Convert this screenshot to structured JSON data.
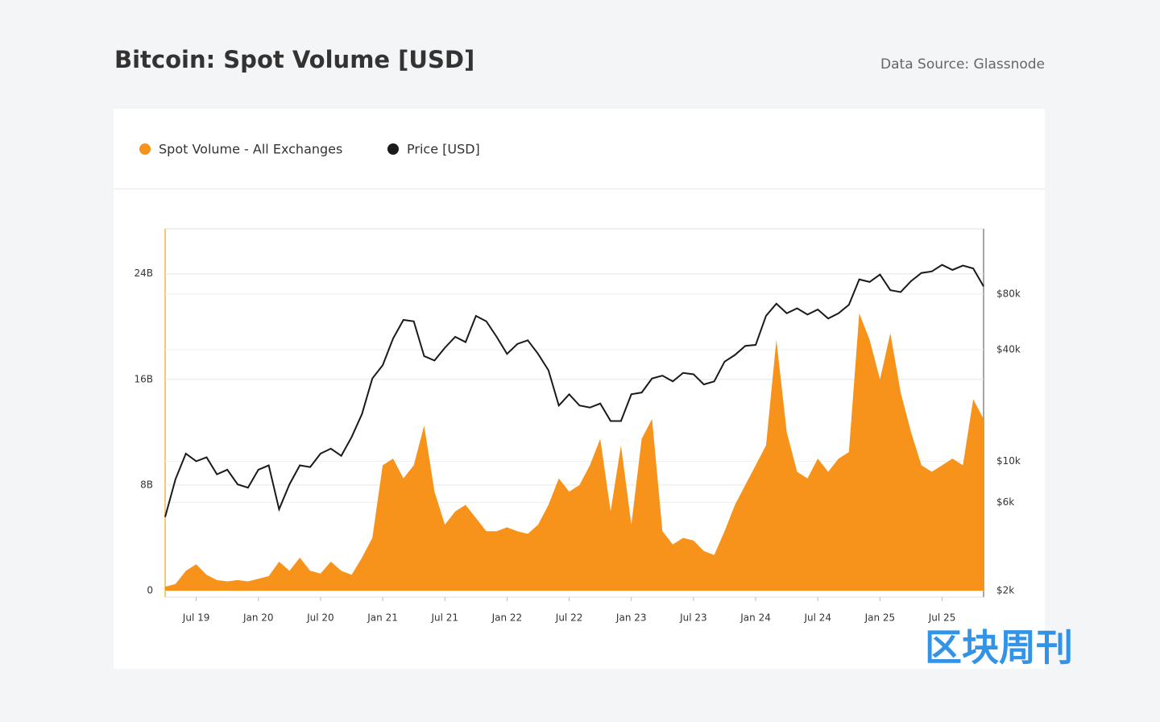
{
  "chart_data": {
    "type": "combo",
    "title": "Bitcoin: Spot Volume [USD]",
    "source": "Data Source: Glassnode",
    "watermark": "区块周刊",
    "x": [
      "2019-04",
      "2019-05",
      "2019-06",
      "2019-07",
      "2019-08",
      "2019-09",
      "2019-10",
      "2019-11",
      "2019-12",
      "2020-01",
      "2020-02",
      "2020-03",
      "2020-04",
      "2020-05",
      "2020-06",
      "2020-07",
      "2020-08",
      "2020-09",
      "2020-10",
      "2020-11",
      "2020-12",
      "2021-01",
      "2021-02",
      "2021-03",
      "2021-04",
      "2021-05",
      "2021-06",
      "2021-07",
      "2021-08",
      "2021-09",
      "2021-10",
      "2021-11",
      "2021-12",
      "2022-01",
      "2022-02",
      "2022-03",
      "2022-04",
      "2022-05",
      "2022-06",
      "2022-07",
      "2022-08",
      "2022-09",
      "2022-10",
      "2022-11",
      "2022-12",
      "2023-01",
      "2023-02",
      "2023-03",
      "2023-04",
      "2023-05",
      "2023-06",
      "2023-07",
      "2023-08",
      "2023-09",
      "2023-10",
      "2023-11",
      "2023-12",
      "2024-01",
      "2024-02",
      "2024-03",
      "2024-04",
      "2024-05",
      "2024-06",
      "2024-07",
      "2024-08",
      "2024-09",
      "2024-10",
      "2024-11",
      "2024-12",
      "2025-01",
      "2025-02",
      "2025-03",
      "2025-04",
      "2025-05",
      "2025-06",
      "2025-07",
      "2025-08",
      "2025-09",
      "2025-10",
      "2025-11"
    ],
    "series": [
      {
        "name": "Spot Volume - All Exchanges",
        "color": "#f7931a",
        "type": "area",
        "values": [
          0.3,
          0.5,
          1.5,
          2.0,
          1.2,
          0.8,
          0.7,
          0.8,
          0.7,
          0.9,
          1.1,
          2.2,
          1.5,
          2.5,
          1.5,
          1.3,
          2.2,
          1.5,
          1.2,
          2.5,
          4.0,
          9.5,
          10.0,
          8.5,
          9.5,
          12.5,
          7.5,
          5.0,
          6.0,
          6.5,
          5.5,
          4.5,
          4.5,
          4.8,
          4.5,
          4.3,
          5.0,
          6.5,
          8.5,
          7.5,
          8.0,
          9.5,
          11.5,
          6.0,
          11.0,
          5.0,
          11.5,
          13.0,
          4.5,
          3.5,
          4.0,
          3.8,
          3.0,
          2.7,
          4.5,
          6.5,
          8.0,
          9.5,
          11.0,
          19.0,
          12.0,
          9.0,
          8.5,
          10.0,
          9.0,
          10.0,
          10.5,
          21.0,
          19.0,
          16.0,
          19.5,
          15.0,
          12.0,
          9.5,
          9.0,
          9.5,
          10.0,
          9.5,
          14.5,
          13.0
        ]
      },
      {
        "name": "Price [USD]",
        "color": "#1a1a1a",
        "type": "line",
        "axis": "y2",
        "values": [
          5000,
          8000,
          11000,
          10000,
          10500,
          8500,
          9000,
          7500,
          7200,
          9000,
          9500,
          5500,
          7500,
          9500,
          9300,
          11000,
          11700,
          10700,
          13500,
          18000,
          28000,
          33000,
          46000,
          58000,
          57000,
          37000,
          35000,
          41000,
          47000,
          44000,
          61000,
          57000,
          47000,
          38000,
          43000,
          45000,
          38000,
          31000,
          20000,
          23000,
          20000,
          19500,
          20500,
          16500,
          16500,
          23000,
          23500,
          28000,
          29000,
          27000,
          30000,
          29500,
          26000,
          27000,
          34500,
          37500,
          42000,
          42500,
          61000,
          71000,
          63000,
          67000,
          62000,
          66000,
          59000,
          63000,
          70000,
          96000,
          93000,
          102000,
          84000,
          82000,
          94000,
          104000,
          106000,
          115000,
          108000,
          114000,
          110000,
          88000
        ]
      }
    ],
    "xlim": [
      "2019-04",
      "2025-11"
    ],
    "xticks": [
      {
        "value": "2019-07",
        "label": "Jul 19"
      },
      {
        "value": "2020-01",
        "label": "Jan 20"
      },
      {
        "value": "2020-07",
        "label": "Jul 20"
      },
      {
        "value": "2021-01",
        "label": "Jan 21"
      },
      {
        "value": "2021-07",
        "label": "Jul 21"
      },
      {
        "value": "2022-01",
        "label": "Jan 22"
      },
      {
        "value": "2022-07",
        "label": "Jul 22"
      },
      {
        "value": "2023-01",
        "label": "Jan 23"
      },
      {
        "value": "2023-07",
        "label": "Jul 23"
      },
      {
        "value": "2024-01",
        "label": "Jan 24"
      },
      {
        "value": "2024-07",
        "label": "Jul 24"
      },
      {
        "value": "2025-01",
        "label": "Jan 25"
      },
      {
        "value": "2025-07",
        "label": "Jul 25"
      }
    ],
    "ylim": [
      0,
      27.4
    ],
    "yticks": [
      0,
      {
        "value": 8,
        "label": "8B"
      },
      {
        "value": 16,
        "label": "16B"
      },
      {
        "value": 24,
        "label": "24B"
      }
    ],
    "y2lim": [
      2000,
      180000
    ],
    "y2_log": true,
    "y2ticks": [
      {
        "value": 2000,
        "label": "$2k"
      },
      {
        "value": 6000,
        "label": "$6k"
      },
      {
        "value": 10000,
        "label": "$10k"
      },
      {
        "value": 40000,
        "label": "$40k"
      },
      {
        "value": 80000,
        "label": "$80k"
      }
    ],
    "grid": true
  }
}
